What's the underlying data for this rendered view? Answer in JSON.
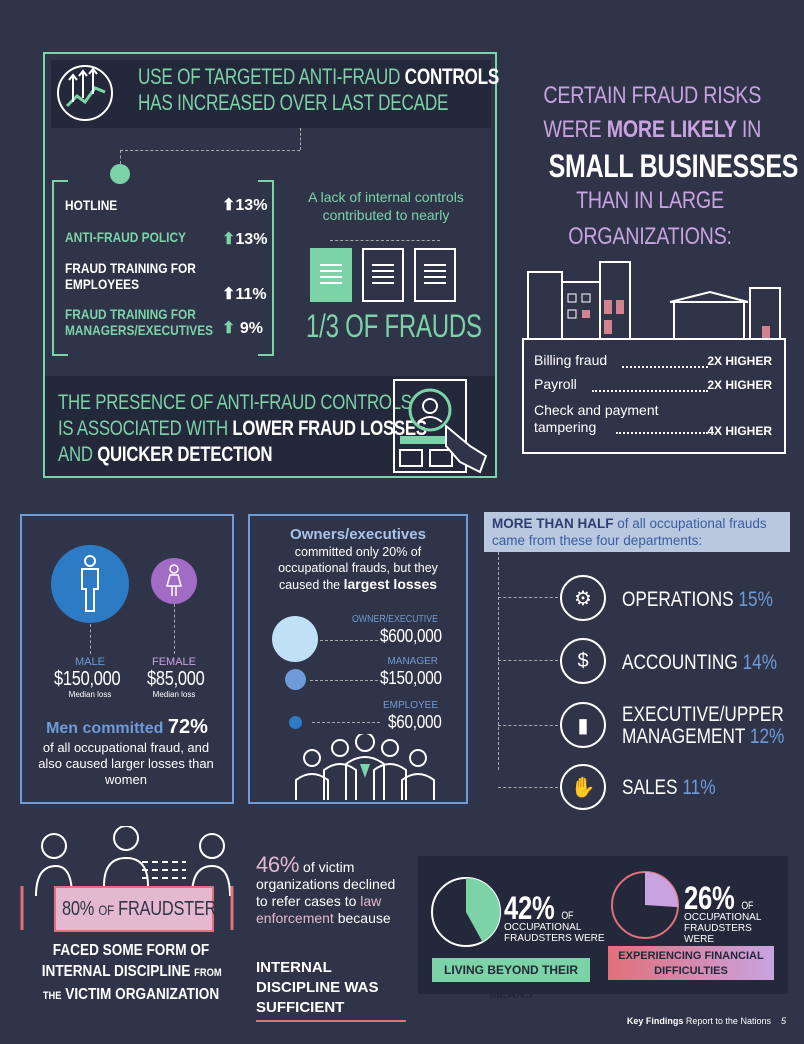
{
  "controls": {
    "title_a": "USE OF TARGETED ANTI-FRAUD",
    "title_b": "CONTROLS",
    "title_c": "HAS INCREASED OVER LAST DECADE",
    "items": [
      {
        "label": "HOTLINE",
        "value": "13%"
      },
      {
        "label": "ANTI-FRAUD POLICY",
        "value": "13%"
      },
      {
        "label": "FRAUD TRAINING FOR EMPLOYEES",
        "value": "11%"
      },
      {
        "label": "FRAUD TRAINING FOR MANAGERS/EXECUTIVES",
        "value": "9%"
      }
    ],
    "lack_text": "A lack of internal controls contributed to nearly",
    "fraction": "1/3 OF FRAUDS",
    "presence_a": "THE PRESENCE OF ANTI-FRAUD CONTROLS",
    "presence_b": "IS ASSOCIATED WITH",
    "presence_c": "LOWER FRAUD LOSSES",
    "presence_d": "AND",
    "presence_e": "QUICKER DETECTION"
  },
  "small_biz": {
    "line1": "CERTAIN FRAUD RISKS",
    "line2a": "WERE",
    "line2b": "MORE LIKELY",
    "line2c": "IN",
    "line3": "SMALL BUSINESSES",
    "line4": "THAN IN LARGE",
    "line5": "ORGANIZATIONS:",
    "risks": [
      {
        "label": "Billing fraud",
        "value": "2X HIGHER"
      },
      {
        "label": "Payroll",
        "value": "2X HIGHER"
      },
      {
        "label": "Check and payment tampering",
        "value": "4X HIGHER"
      }
    ]
  },
  "gender": {
    "male_label": "MALE",
    "male_value": "$150,000",
    "female_label": "FEMALE",
    "female_value": "$85,000",
    "median": "Median loss",
    "men_a": "Men committed",
    "men_b": "72%",
    "men_c": "of all occupational fraud, and also caused larger losses than women"
  },
  "position": {
    "head": "Owners/executives",
    "text_a": "committed only 20% of occupational frauds, but they caused the",
    "text_b": "largest losses",
    "levels": [
      {
        "label": "OWNER/EXECUTIVE",
        "value": "$600,000"
      },
      {
        "label": "MANAGER",
        "value": "$150,000"
      },
      {
        "label": "EMPLOYEE",
        "value": "$60,000"
      }
    ]
  },
  "departments": {
    "head_a": "MORE THAN HALF",
    "head_b": "of all occupational frauds came from these four departments:",
    "items": [
      {
        "label": "OPERATIONS",
        "value": "15%",
        "icon": "operations-icon"
      },
      {
        "label": "ACCOUNTING",
        "value": "14%",
        "icon": "accounting-icon"
      },
      {
        "label": "EXECUTIVE/UPPER",
        "label2": "MANAGEMENT",
        "value": "12%",
        "icon": "executive-icon"
      },
      {
        "label": "SALES",
        "value": "11%",
        "icon": "sales-icon"
      }
    ]
  },
  "discipline": {
    "pct": "80%",
    "of": "OF",
    "word": "FRAUDSTERS",
    "line1": "FACED SOME FORM OF",
    "line2a": "INTERNAL DISCIPLINE",
    "line2b": "FROM",
    "line3a": "THE",
    "line3b": "VICTIM ORGANIZATION"
  },
  "declined": {
    "pct": "46%",
    "text_a": "of victim organizations declined to refer cases to",
    "text_b": "law enforcement",
    "text_c": "because",
    "reason": "INTERNAL DISCIPLINE WAS SUFFICIENT"
  },
  "flags": {
    "a_pct": "42%",
    "a_of": "OF",
    "a_text": "OCCUPATIONAL FRAUDSTERS WERE",
    "a_label": "LIVING BEYOND THEIR MEANS",
    "a_fraction": 0.42,
    "b_pct": "26%",
    "b_of": "OF",
    "b_text": "OCCUPATIONAL FRAUDSTERS WERE",
    "b_label": "EXPERIENCING FINANCIAL DIFFICULTIES",
    "b_fraction": 0.26
  },
  "footer": {
    "bold": "Key Findings",
    "text": "Report to the Nations",
    "page": "5"
  },
  "colors": {
    "green": "#7dd3a8",
    "blue": "#6f9bd8",
    "purple": "#c9a3e0",
    "bg": "#2f3448"
  }
}
